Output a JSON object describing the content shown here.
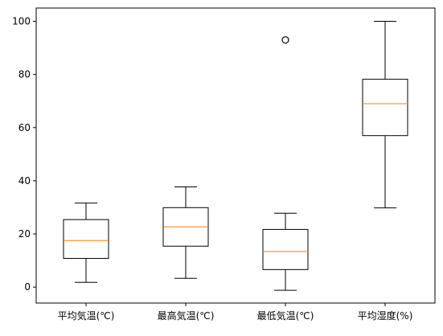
{
  "chart_data": {
    "type": "box",
    "categories": [
      "平均気温(℃)",
      "最高気温(℃)",
      "最低気温(℃)",
      "平均湿度(%)"
    ],
    "boxes": [
      {
        "whisker_low": 1.8,
        "q1": 10.8,
        "median": 17.5,
        "q3": 25.4,
        "whisker_high": 31.6,
        "outliers": []
      },
      {
        "whisker_low": 3.3,
        "q1": 15.4,
        "median": 22.7,
        "q3": 29.9,
        "whisker_high": 37.7,
        "outliers": []
      },
      {
        "whisker_low": -1.2,
        "q1": 6.6,
        "median": 13.4,
        "q3": 21.7,
        "whisker_high": 27.8,
        "outliers": [
          93.0
        ]
      },
      {
        "whisker_low": 29.8,
        "q1": 57.0,
        "median": 69.0,
        "q3": 78.2,
        "whisker_high": 100.0,
        "outliers": []
      }
    ],
    "ylim": [
      -6,
      105
    ],
    "yticks": [
      0,
      20,
      40,
      60,
      80,
      100
    ],
    "grid": false,
    "colors": {
      "box": "#000000",
      "median": "#ff7f0e",
      "outlier": "#000000"
    }
  }
}
